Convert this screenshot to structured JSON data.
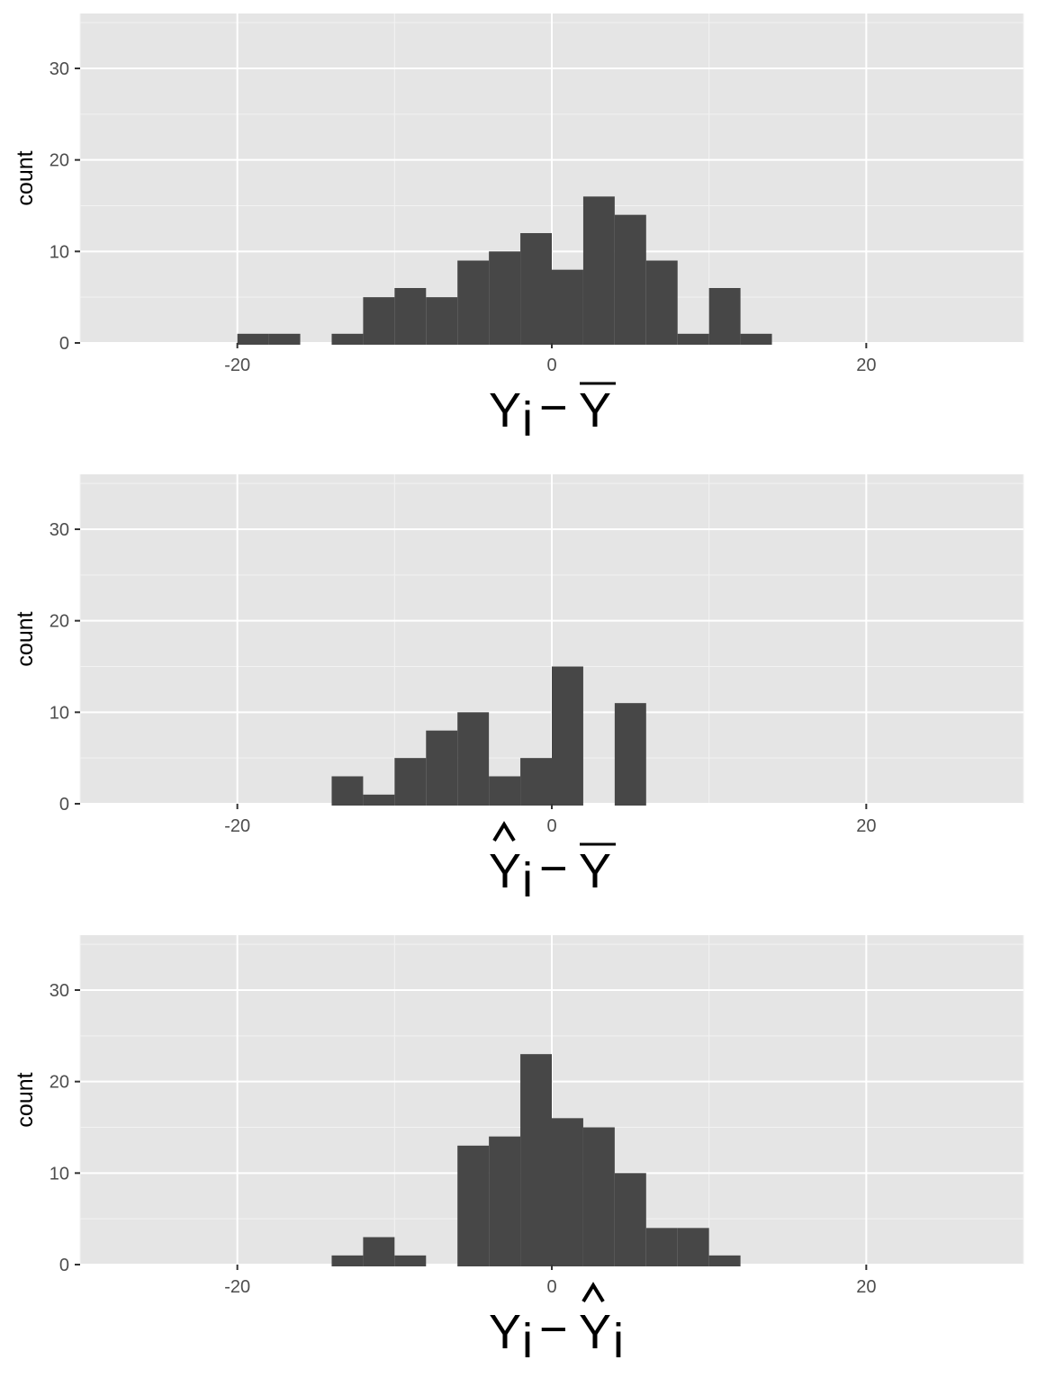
{
  "chart_data": [
    {
      "type": "bar",
      "subtype": "histogram",
      "xlabel_parts": {
        "main": "Y",
        "sub": "i",
        "minus": "−",
        "rhs": "Y",
        "rhs_sub": "",
        "lhs_hat": false,
        "rhs_bar": true,
        "rhs_hat": false
      },
      "ylabel": "count",
      "xlim": [
        -30,
        30
      ],
      "ylim": [
        0,
        36
      ],
      "x_ticks": [
        -20,
        0,
        20
      ],
      "x_tick_labels": [
        "-20",
        "0",
        "20"
      ],
      "y_ticks": [
        0,
        10,
        20,
        30
      ],
      "y_tick_labels": [
        "0",
        "10",
        "20",
        "30"
      ],
      "bins": [
        {
          "x0": -20,
          "x1": -18,
          "count": 1
        },
        {
          "x0": -18,
          "x1": -16,
          "count": 1
        },
        {
          "x0": -14,
          "x1": -12,
          "count": 1
        },
        {
          "x0": -12,
          "x1": -10,
          "count": 5
        },
        {
          "x0": -10,
          "x1": -8,
          "count": 6
        },
        {
          "x0": -8,
          "x1": -6,
          "count": 5
        },
        {
          "x0": -6,
          "x1": -4,
          "count": 9
        },
        {
          "x0": -4,
          "x1": -2,
          "count": 10
        },
        {
          "x0": -2,
          "x1": 0,
          "count": 12
        },
        {
          "x0": 0,
          "x1": 2,
          "count": 8
        },
        {
          "x0": 2,
          "x1": 4,
          "count": 16
        },
        {
          "x0": 4,
          "x1": 6,
          "count": 14
        },
        {
          "x0": 6,
          "x1": 8,
          "count": 9
        },
        {
          "x0": 8,
          "x1": 10,
          "count": 1
        },
        {
          "x0": 10,
          "x1": 12,
          "count": 6
        },
        {
          "x0": 12,
          "x1": 14,
          "count": 1
        }
      ],
      "grid": true
    },
    {
      "type": "bar",
      "subtype": "histogram",
      "xlabel_parts": {
        "main": "Y",
        "sub": "i",
        "minus": "−",
        "rhs": "Y",
        "rhs_sub": "",
        "lhs_hat": true,
        "rhs_bar": true,
        "rhs_hat": false
      },
      "ylabel": "count",
      "xlim": [
        -30,
        30
      ],
      "ylim": [
        0,
        36
      ],
      "x_ticks": [
        -20,
        0,
        20
      ],
      "x_tick_labels": [
        "-20",
        "0",
        "20"
      ],
      "y_ticks": [
        0,
        10,
        20,
        30
      ],
      "y_tick_labels": [
        "0",
        "10",
        "20",
        "30"
      ],
      "bins": [
        {
          "x0": -14,
          "x1": -12,
          "count": 3
        },
        {
          "x0": -12,
          "x1": -10,
          "count": 1
        },
        {
          "x0": -10,
          "x1": -8,
          "count": 5
        },
        {
          "x0": -8,
          "x1": -6,
          "count": 8
        },
        {
          "x0": -6,
          "x1": -4,
          "count": 10
        },
        {
          "x0": -4,
          "x1": -2,
          "count": 3
        },
        {
          "x0": -2,
          "x1": 0,
          "count": 5
        },
        {
          "x0": 0,
          "x1": 2,
          "count": 15
        },
        {
          "x0": 4,
          "x1": 6,
          "count": 11
        }
      ],
      "grid": true
    },
    {
      "type": "bar",
      "subtype": "histogram",
      "xlabel_parts": {
        "main": "Y",
        "sub": "i",
        "minus": "−",
        "rhs": "Y",
        "rhs_sub": "i",
        "lhs_hat": false,
        "rhs_bar": false,
        "rhs_hat": true
      },
      "ylabel": "count",
      "xlim": [
        -30,
        30
      ],
      "ylim": [
        0,
        36
      ],
      "x_ticks": [
        -20,
        0,
        20
      ],
      "x_tick_labels": [
        "-20",
        "0",
        "20"
      ],
      "y_ticks": [
        0,
        10,
        20,
        30
      ],
      "y_tick_labels": [
        "0",
        "10",
        "20",
        "30"
      ],
      "bins": [
        {
          "x0": -14,
          "x1": -12,
          "count": 1
        },
        {
          "x0": -12,
          "x1": -10,
          "count": 3
        },
        {
          "x0": -10,
          "x1": -8,
          "count": 1
        },
        {
          "x0": -6,
          "x1": -4,
          "count": 13
        },
        {
          "x0": -4,
          "x1": -2,
          "count": 14
        },
        {
          "x0": -2,
          "x1": 0,
          "count": 23
        },
        {
          "x0": 0,
          "x1": 2,
          "count": 16
        },
        {
          "x0": 2,
          "x1": 4,
          "count": 15
        },
        {
          "x0": 4,
          "x1": 6,
          "count": 10
        },
        {
          "x0": 6,
          "x1": 8,
          "count": 4
        },
        {
          "x0": 8,
          "x1": 10,
          "count": 4
        },
        {
          "x0": 10,
          "x1": 12,
          "count": 1
        }
      ],
      "grid": true
    }
  ],
  "colors": {
    "panel_bg": "#e5e5e5",
    "grid_major": "#ffffff",
    "grid_minor": "#f2f2f2",
    "bar_fill": "#474747",
    "axis_text": "#4d4d4d",
    "tick_mark": "#333333"
  }
}
